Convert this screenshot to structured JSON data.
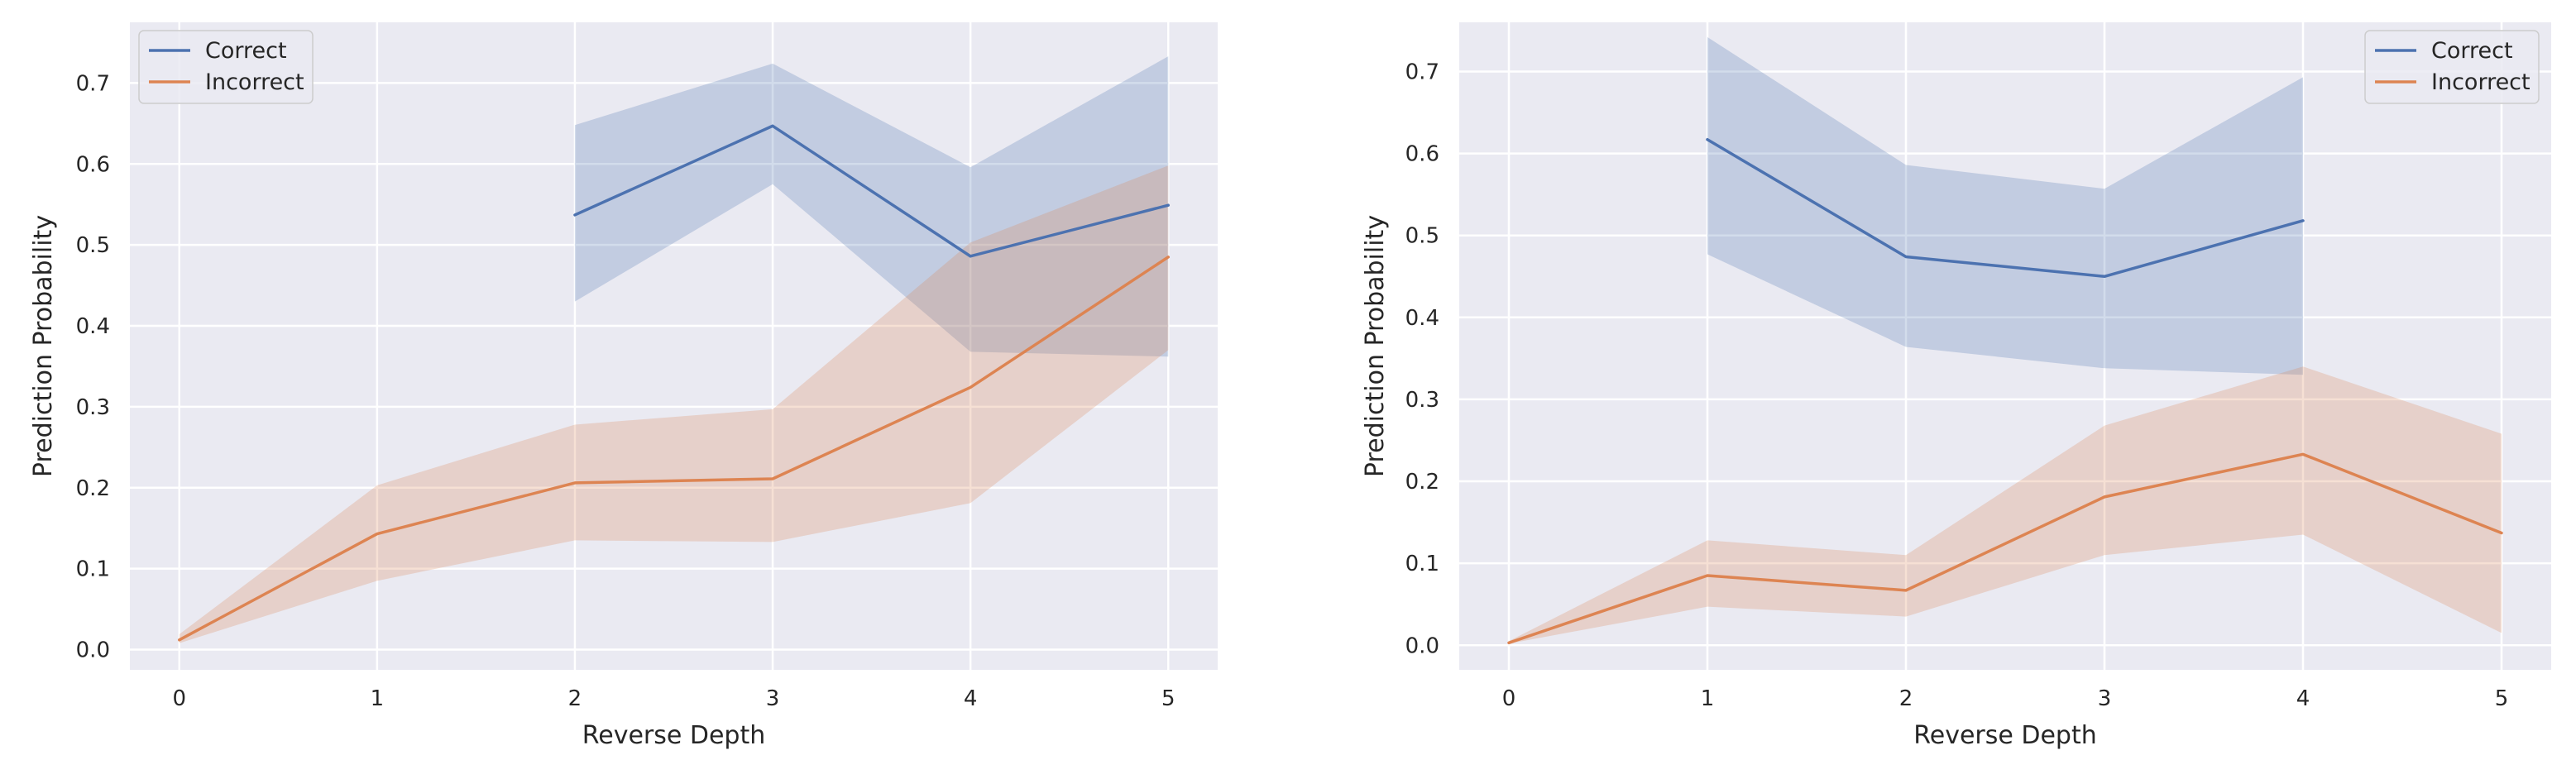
{
  "chart_data": [
    {
      "type": "line",
      "xlabel": "Reverse Depth",
      "ylabel": "Prediction Probability",
      "xlim": [
        -0.25,
        5.25
      ],
      "ylim": [
        -0.025,
        0.775
      ],
      "xticks": [
        0,
        1,
        2,
        3,
        4,
        5
      ],
      "yticks": [
        0.0,
        0.1,
        0.2,
        0.3,
        0.4,
        0.5,
        0.6,
        0.7
      ],
      "grid": true,
      "legend_position": "top-left",
      "series": [
        {
          "name": "Correct",
          "color": "#4c72b0",
          "x": [
            2,
            3,
            4,
            5
          ],
          "y": [
            0.537,
            0.647,
            0.486,
            0.549
          ],
          "lower": [
            0.43,
            0.575,
            0.368,
            0.362
          ],
          "upper": [
            0.648,
            0.724,
            0.596,
            0.733
          ]
        },
        {
          "name": "Incorrect",
          "color": "#dd8452",
          "x": [
            0,
            1,
            2,
            3,
            4,
            5
          ],
          "y": [
            0.012,
            0.143,
            0.206,
            0.211,
            0.324,
            0.485
          ],
          "lower": [
            0.008,
            0.085,
            0.135,
            0.133,
            0.181,
            0.37
          ],
          "upper": [
            0.019,
            0.203,
            0.278,
            0.297,
            0.503,
            0.598
          ]
        }
      ]
    },
    {
      "type": "line",
      "xlabel": "Reverse Depth",
      "ylabel": "Prediction Probability",
      "xlim": [
        -0.25,
        5.25
      ],
      "ylim": [
        -0.03,
        0.76
      ],
      "xticks": [
        0,
        1,
        2,
        3,
        4,
        5
      ],
      "yticks": [
        0.0,
        0.1,
        0.2,
        0.3,
        0.4,
        0.5,
        0.6,
        0.7
      ],
      "grid": true,
      "legend_position": "top-right",
      "series": [
        {
          "name": "Correct",
          "color": "#4c72b0",
          "x": [
            1,
            2,
            3,
            4
          ],
          "y": [
            0.617,
            0.474,
            0.45,
            0.518
          ],
          "lower": [
            0.477,
            0.364,
            0.338,
            0.33
          ],
          "upper": [
            0.742,
            0.586,
            0.557,
            0.693
          ]
        },
        {
          "name": "Incorrect",
          "color": "#dd8452",
          "x": [
            0,
            1,
            2,
            3,
            4,
            5
          ],
          "y": [
            0.003,
            0.085,
            0.067,
            0.181,
            0.233,
            0.137
          ],
          "lower": [
            0.002,
            0.047,
            0.035,
            0.11,
            0.135,
            0.015
          ],
          "upper": [
            0.005,
            0.128,
            0.11,
            0.268,
            0.34,
            0.258
          ]
        }
      ]
    }
  ]
}
